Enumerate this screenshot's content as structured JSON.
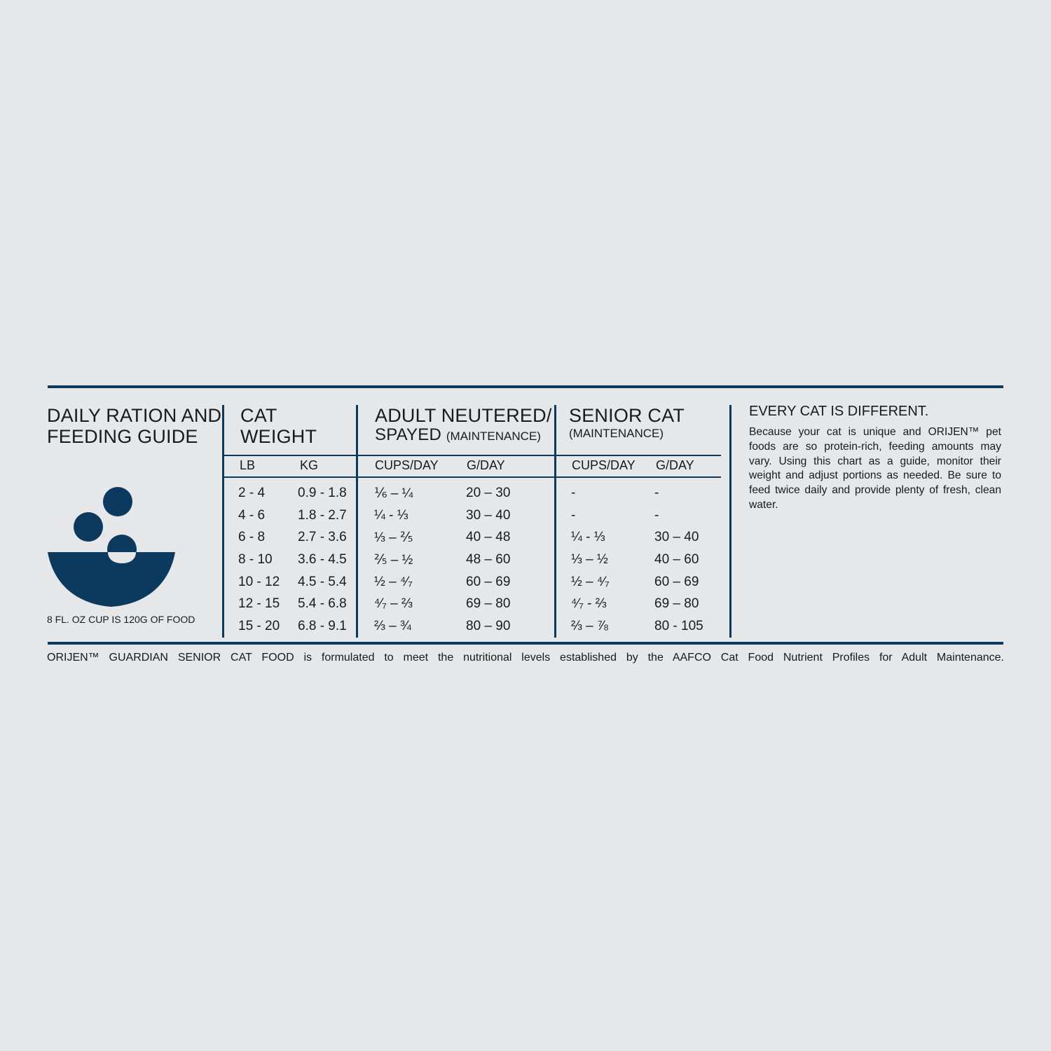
{
  "guide": {
    "title_line1": "DAILY RATION AND",
    "title_line2": "FEEDING GUIDE",
    "cup_note": "8 FL. OZ CUP IS 120G OF FOOD",
    "icon": "bowl-with-kibble-icon",
    "accent_color": "#0b3a5e"
  },
  "columns": {
    "weight": {
      "title_line1": "CAT",
      "title_line2": "WEIGHT",
      "sub": [
        "LB",
        "KG"
      ]
    },
    "adult": {
      "title_line1": "ADULT NEUTERED/",
      "title_line2": "SPAYED",
      "title_small": "(MAINTENANCE)",
      "sub": [
        "CUPS/DAY",
        "G/DAY"
      ]
    },
    "senior": {
      "title_line1": "SENIOR CAT",
      "title_small": "(MAINTENANCE)",
      "sub": [
        "CUPS/DAY",
        "G/DAY"
      ]
    }
  },
  "rows": [
    {
      "lb": "2 - 4",
      "kg": "0.9 - 1.8",
      "adult_cups": "⅙ – ¼",
      "adult_g": "20 – 30",
      "senior_cups": "-",
      "senior_g": "-"
    },
    {
      "lb": "4 - 6",
      "kg": "1.8 - 2.7",
      "adult_cups": "¼ - ⅓",
      "adult_g": "30 – 40",
      "senior_cups": "-",
      "senior_g": "-"
    },
    {
      "lb": "6 - 8",
      "kg": "2.7 - 3.6",
      "adult_cups": "⅓ – ⅖",
      "adult_g": "40 – 48",
      "senior_cups": "¼ - ⅓",
      "senior_g": "30 – 40"
    },
    {
      "lb": "8 - 10",
      "kg": "3.6 - 4.5",
      "adult_cups": "⅖ – ½",
      "adult_g": "48 – 60",
      "senior_cups": "⅓ – ½",
      "senior_g": "40 – 60"
    },
    {
      "lb": "10 - 12",
      "kg": "4.5 - 5.4",
      "adult_cups": "½ – ⁴⁄₇",
      "adult_g": "60 – 69",
      "senior_cups": "½ – ⁴⁄₇",
      "senior_g": "60 – 69"
    },
    {
      "lb": "12 - 15",
      "kg": "5.4 - 6.8",
      "adult_cups": "⁴⁄₇ – ⅔",
      "adult_g": "69 – 80",
      "senior_cups": "⁴⁄₇ - ⅔",
      "senior_g": "69 – 80"
    },
    {
      "lb": "15 - 20",
      "kg": "6.8 - 9.1",
      "adult_cups": "⅔ – ¾",
      "adult_g": "80 – 90",
      "senior_cups": "⅔ – ⅞",
      "senior_g": "80 - 105"
    }
  ],
  "note": {
    "title": "EVERY CAT IS DIFFERENT.",
    "body": "Because your cat is unique and ORIJEN™ pet foods are so protein-rich, feeding amounts may vary. Using this chart as a guide, monitor their weight and adjust portions as needed. Be sure to feed twice daily and provide plenty of fresh, clean water."
  },
  "footer": "ORIJEN™ GUARDIAN SENIOR CAT FOOD is formulated to meet the nutritional levels established by the AAFCO Cat Food Nutrient Profiles for Adult Maintenance."
}
